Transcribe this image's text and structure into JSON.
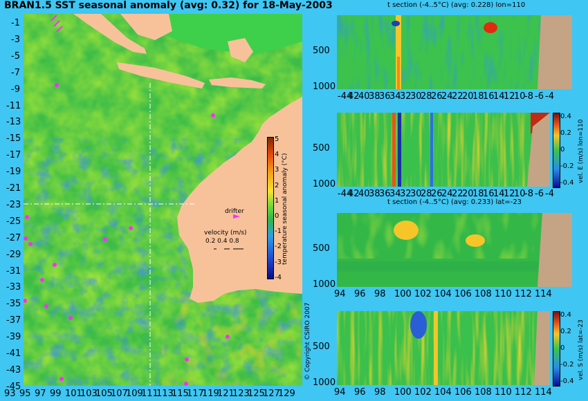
{
  "title": "BRAN1.5 SST seasonal anomaly (avg: 0.32) for 18-May-2003",
  "map": {
    "lat_ticks": [
      "-1",
      "-3",
      "-5",
      "-7",
      "-9",
      "-11",
      "-13",
      "-15",
      "-17",
      "-19",
      "-21",
      "-23",
      "-25",
      "-27",
      "-29",
      "-31",
      "-33",
      "-35",
      "-37",
      "-39",
      "-41",
      "-43",
      "-45"
    ],
    "lon_ticks": [
      "93",
      "95",
      "97",
      "99",
      "101",
      "103",
      "105",
      "107",
      "109",
      "111",
      "113",
      "115",
      "117",
      "119",
      "121",
      "123",
      "125",
      "127",
      "129"
    ],
    "section_lat_label": "-23",
    "section_lon_label": "110",
    "colorbar": {
      "ticks": [
        "5",
        "4",
        "3",
        "2",
        "1",
        "0",
        "-1",
        "-2",
        "-3",
        "-4"
      ],
      "label": "temperature seasonal anomaly (°C)"
    },
    "legend": {
      "drifter": "drifter",
      "velocity_label": "velocity (m/s)",
      "velocity_values": "0.2 0.4 0.8"
    },
    "copyright": "© Copyright CSIRO 2007",
    "colors": {
      "land": "#f7c29a",
      "drifter": "#ff2bff",
      "ocean_mid": "#3fbf4a"
    }
  },
  "panels": [
    {
      "title": "t section (-4..5°C) (avg: 0.228) lon=110",
      "y_ticks": [
        "500",
        "1000"
      ],
      "x_ticks": [
        "-44",
        "42",
        "40",
        "38",
        "36",
        "34",
        "32",
        "30",
        "28",
        "26",
        "24",
        "22",
        "20",
        "18",
        "16",
        "14",
        "12",
        "10",
        "-8",
        "-6",
        "-4"
      ]
    },
    {
      "title": "",
      "y_ticks": [
        "500",
        "1000"
      ],
      "x_ticks": [
        "-44",
        "42",
        "40",
        "38",
        "36",
        "34",
        "32",
        "30",
        "28",
        "26",
        "24",
        "22",
        "20",
        "18",
        "16",
        "14",
        "12",
        "10",
        "-8",
        "-6",
        "-4"
      ],
      "colorbar_ticks": [
        "0.4",
        "0.2",
        "0",
        "-0.2",
        "-0.4"
      ],
      "colorbar_label": "vel. E (m/s) lon=110"
    },
    {
      "title": "t section (-4..5°C) (avg: 0.233) lat=-23",
      "y_ticks": [
        "500",
        "1000"
      ],
      "x_ticks": [
        "94",
        "96",
        "98",
        "100",
        "102",
        "104",
        "106",
        "108",
        "110",
        "112",
        "114"
      ]
    },
    {
      "title": "",
      "y_ticks": [
        "500",
        "1000"
      ],
      "x_ticks": [
        "94",
        "96",
        "98",
        "100",
        "102",
        "104",
        "106",
        "108",
        "110",
        "112",
        "114"
      ],
      "colorbar_ticks": [
        "0.4",
        "0.2",
        "0",
        "-0.2",
        "-0.4"
      ],
      "colorbar_label": "vel. S (m/s) lat=-23"
    }
  ]
}
